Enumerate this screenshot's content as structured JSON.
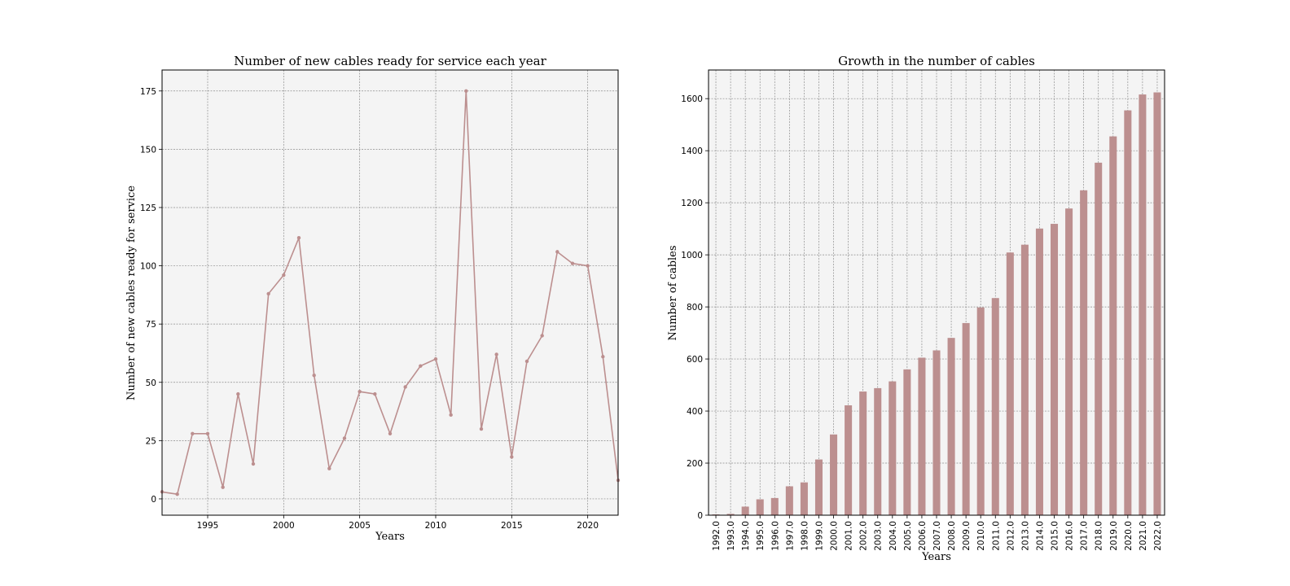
{
  "chart_data": [
    {
      "type": "line",
      "title": "Number of new cables ready for service each year",
      "xlabel": "Years",
      "ylabel": "Number of new cables ready for service",
      "xlim": [
        1992,
        2022
      ],
      "ylim": [
        -7,
        184
      ],
      "xticks": [
        1995,
        2000,
        2005,
        2010,
        2015,
        2020
      ],
      "yticks": [
        0,
        25,
        50,
        75,
        100,
        125,
        150,
        175
      ],
      "grid": true,
      "color": "#bc8f8f",
      "background": "#f4f4f4",
      "x": [
        1992,
        1993,
        1994,
        1995,
        1996,
        1997,
        1998,
        1999,
        2000,
        2001,
        2002,
        2003,
        2004,
        2005,
        2006,
        2007,
        2008,
        2009,
        2010,
        2011,
        2012,
        2013,
        2014,
        2015,
        2016,
        2017,
        2018,
        2019,
        2020,
        2021,
        2022
      ],
      "y": [
        3,
        2,
        28,
        28,
        5,
        45,
        15,
        88,
        96,
        112,
        53,
        13,
        26,
        46,
        45,
        28,
        48,
        57,
        60,
        36,
        175,
        30,
        62,
        18,
        59,
        70,
        106,
        101,
        100,
        61,
        8
      ]
    },
    {
      "type": "bar",
      "title": "Growth in the number of cables",
      "xlabel": "Years",
      "ylabel": "Number of cables",
      "ylim": [
        0,
        1710
      ],
      "yticks": [
        0,
        200,
        400,
        600,
        800,
        1000,
        1200,
        1400,
        1600
      ],
      "grid": true,
      "color": "#bc8f8f",
      "background": "#f4f4f4",
      "categories": [
        "1992.0",
        "1993.0",
        "1994.0",
        "1995.0",
        "1996.0",
        "1997.0",
        "1998.0",
        "1999.0",
        "2000.0",
        "2001.0",
        "2002.0",
        "2003.0",
        "2004.0",
        "2005.0",
        "2006.0",
        "2007.0",
        "2008.0",
        "2009.0",
        "2010.0",
        "2011.0",
        "2012.0",
        "2013.0",
        "2014.0",
        "2015.0",
        "2016.0",
        "2017.0",
        "2018.0",
        "2019.0",
        "2020.0",
        "2021.0",
        "2022.0"
      ],
      "values": [
        3,
        5,
        33,
        61,
        66,
        111,
        126,
        214,
        310,
        422,
        475,
        488,
        514,
        560,
        605,
        633,
        681,
        738,
        798,
        834,
        1009,
        1039,
        1101,
        1119,
        1178,
        1248,
        1354,
        1455,
        1555,
        1616,
        1624
      ]
    }
  ]
}
